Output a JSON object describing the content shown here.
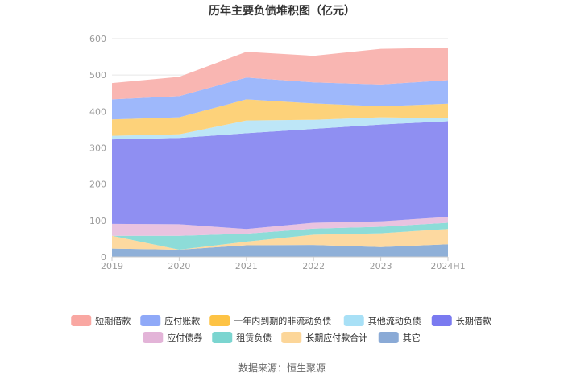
{
  "chart_data": {
    "type": "area",
    "stacked": true,
    "title": "历年主要负债堆积图（亿元）",
    "categories": [
      "2019",
      "2020",
      "2021",
      "2022",
      "2023",
      "2024H1"
    ],
    "ylim": [
      0,
      600
    ],
    "yticks": [
      "0",
      "100",
      "200",
      "300",
      "400",
      "500",
      "600"
    ],
    "grid": true,
    "legend_position": "bottom",
    "series": [
      {
        "name": "其它",
        "color": "#8fb0d8",
        "values": [
          23,
          20,
          32,
          33,
          27,
          35
        ]
      },
      {
        "name": "长期应付款合计",
        "color": "#fdd9a0",
        "values": [
          35,
          0,
          10,
          28,
          38,
          42
        ]
      },
      {
        "name": "租赁负债",
        "color": "#8ddcd8",
        "values": [
          0,
          38,
          22,
          17,
          18,
          17
        ]
      },
      {
        "name": "应付债券",
        "color": "#e9c3e0",
        "values": [
          33,
          32,
          13,
          16,
          15,
          16
        ]
      },
      {
        "name": "长期借款",
        "color": "#8f8ff2",
        "values": [
          232,
          237,
          263,
          258,
          266,
          263
        ]
      },
      {
        "name": "其他流动负债",
        "color": "#bde6f7",
        "values": [
          10,
          10,
          35,
          25,
          20,
          8
        ]
      },
      {
        "name": "一年内到期的非流动负债",
        "color": "#fdd27a",
        "values": [
          45,
          47,
          58,
          45,
          30,
          40
        ]
      },
      {
        "name": "应付账款",
        "color": "#9eb8fb",
        "values": [
          55,
          58,
          60,
          58,
          60,
          65
        ]
      },
      {
        "name": "短期借款",
        "color": "#f9b6b2",
        "values": [
          45,
          53,
          71,
          73,
          98,
          89
        ]
      }
    ],
    "legend": [
      {
        "label": "短期借款",
        "color": "#f9a7a2"
      },
      {
        "label": "应付账款",
        "color": "#8fa9f8"
      },
      {
        "label": "一年内到期的非流动负债",
        "color": "#fdc345"
      },
      {
        "label": "其他流动负债",
        "color": "#a8e0f6"
      },
      {
        "label": "长期借款",
        "color": "#7a7af0"
      },
      {
        "label": "应付债券",
        "color": "#e3b4d8"
      },
      {
        "label": "租赁负债",
        "color": "#7bd5d0"
      },
      {
        "label": "长期应付款合计",
        "color": "#fcd699"
      },
      {
        "label": "其它",
        "color": "#8aaad6"
      }
    ]
  },
  "source": "数据来源：恒生聚源"
}
